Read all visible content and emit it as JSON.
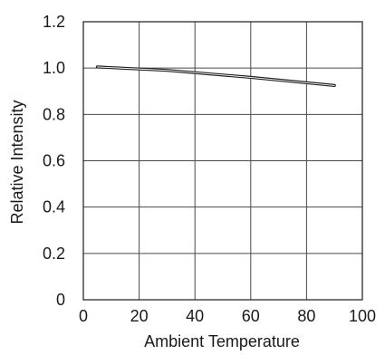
{
  "chart_data": {
    "type": "line",
    "xlabel": "Ambient Temperature",
    "ylabel": "Relative Intensity",
    "xlim": [
      0,
      100
    ],
    "ylim": [
      0,
      1.2
    ],
    "x_ticks": [
      0,
      20,
      40,
      60,
      80,
      100
    ],
    "y_ticks": [
      0,
      0.2,
      0.4,
      0.6,
      0.8,
      1.0,
      1.2
    ],
    "x_tick_labels": [
      "0",
      "20",
      "40",
      "60",
      "80",
      "100"
    ],
    "y_tick_labels": [
      "0",
      "0.2",
      "0.4",
      "0.6",
      "0.8",
      "1.0",
      "1.2"
    ],
    "grid": true,
    "series": [
      {
        "color": "#222222",
        "x": [
          5,
          30,
          60,
          90
        ],
        "y": [
          1.005,
          0.99,
          0.96,
          0.925
        ]
      }
    ]
  }
}
